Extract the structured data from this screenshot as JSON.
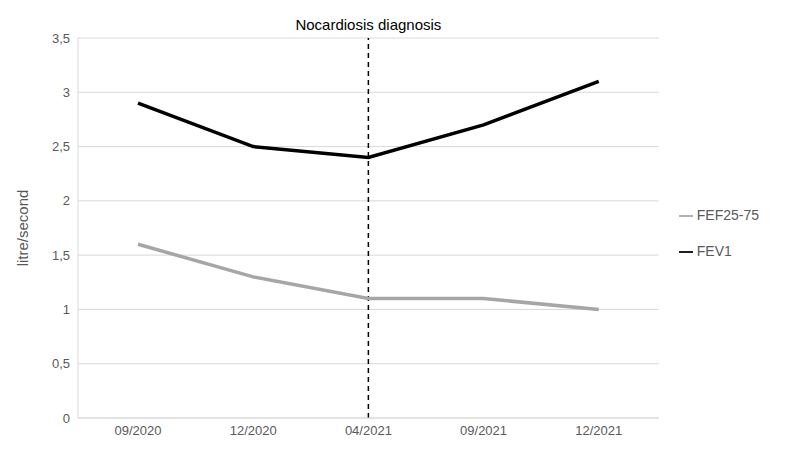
{
  "chart_data": {
    "type": "line",
    "y_label": "litre/second",
    "annotation": {
      "text": "Nocardiosis diagnosis",
      "x": "04/2021"
    },
    "categories": [
      "09/2020",
      "12/2020",
      "04/2021",
      "09/2021",
      "12/2021"
    ],
    "series": [
      {
        "name": "FEV1",
        "color": "#000000",
        "values": [
          2.9,
          2.5,
          2.4,
          2.7,
          3.1
        ]
      },
      {
        "name": "FEF25-75",
        "color": "#a6a6a6",
        "values": [
          1.6,
          1.3,
          1.1,
          1.1,
          1.0
        ]
      }
    ],
    "ylim": [
      0,
      3.5
    ],
    "yticks": [
      0,
      {
        "value": 0.5,
        "label": "0,5"
      },
      1,
      {
        "value": 1.5,
        "label": "1,5"
      },
      2,
      {
        "value": 2.5,
        "label": "2,5"
      },
      3,
      {
        "value": 3.5,
        "label": "3,5"
      }
    ],
    "grid": true,
    "legend": "right"
  }
}
